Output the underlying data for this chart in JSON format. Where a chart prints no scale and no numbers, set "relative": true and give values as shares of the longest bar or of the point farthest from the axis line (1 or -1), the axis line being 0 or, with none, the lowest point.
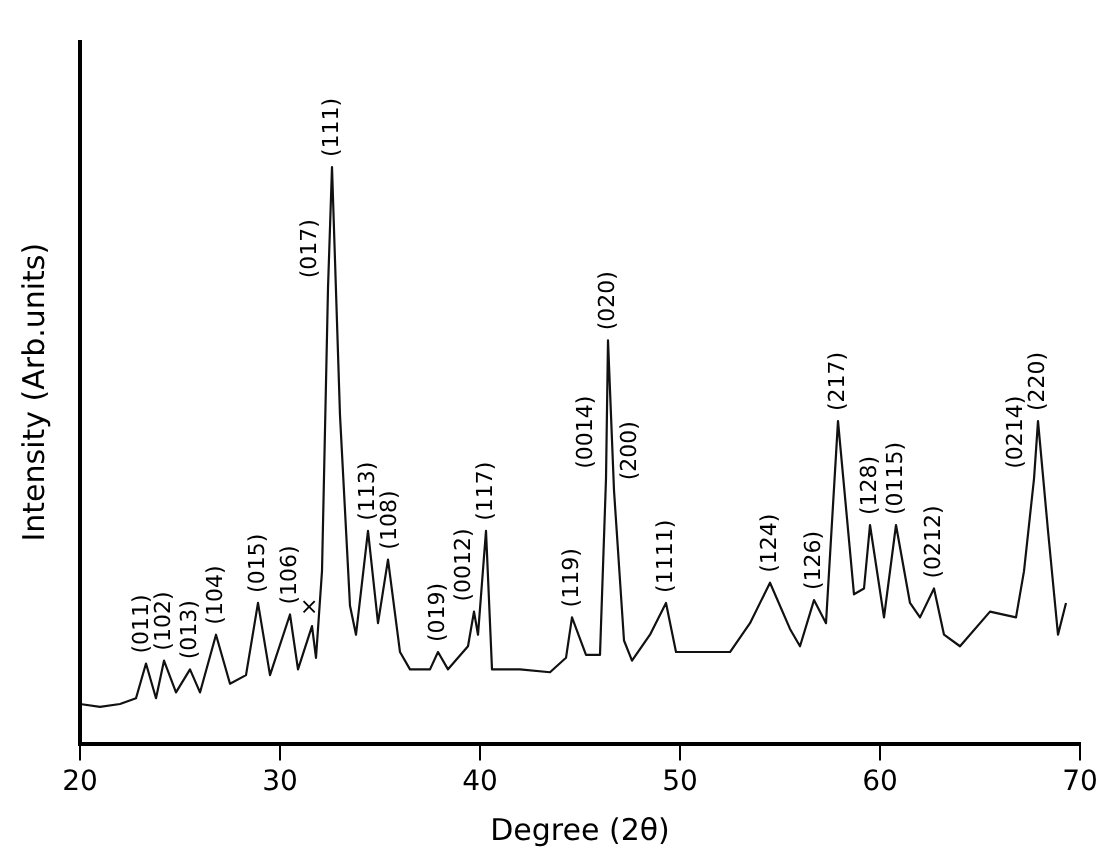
{
  "chart_data": {
    "type": "line",
    "relative": true,
    "xlabel": "Degree (2θ)",
    "ylabel": "Intensity (Arb.units)",
    "xlim": [
      20,
      70
    ],
    "xticks": [
      20,
      30,
      40,
      50,
      60,
      70
    ],
    "grid": false,
    "legend": false,
    "marker": "none",
    "line_style": "solid",
    "x": [
      20,
      21,
      22,
      22.8,
      23.3,
      23.8,
      24.2,
      24.8,
      25.5,
      26.0,
      26.8,
      27.5,
      28.3,
      28.9,
      29.5,
      30.5,
      30.9,
      31.6,
      31.8,
      32.1,
      32.4,
      32.6,
      33.0,
      33.5,
      33.8,
      34.4,
      34.9,
      35.4,
      36.0,
      36.5,
      37.5,
      37.9,
      38.4,
      38.9,
      39.4,
      39.7,
      39.9,
      40.3,
      40.6,
      42,
      43.5,
      44.3,
      44.6,
      45.3,
      46.0,
      46.3,
      46.4,
      46.7,
      47.2,
      47.6,
      48.5,
      49.3,
      49.8,
      51,
      52.5,
      53.5,
      54.5,
      55.5,
      56.0,
      56.7,
      57.3,
      57.9,
      58.7,
      59.2,
      59.5,
      60.2,
      60.8,
      61.5,
      62.0,
      62.7,
      63.2,
      64,
      65.5,
      66.8,
      67.2,
      67.7,
      67.9,
      68.4,
      68.9,
      69.3
    ],
    "series": [
      {
        "color": "#111111",
        "values": [
          0.07,
          0.065,
          0.07,
          0.08,
          0.14,
          0.08,
          0.145,
          0.09,
          0.13,
          0.09,
          0.19,
          0.105,
          0.12,
          0.245,
          0.12,
          0.225,
          0.13,
          0.205,
          0.15,
          0.3,
          0.79,
          1.0,
          0.57,
          0.24,
          0.19,
          0.37,
          0.21,
          0.32,
          0.16,
          0.13,
          0.13,
          0.16,
          0.13,
          0.15,
          0.17,
          0.23,
          0.19,
          0.37,
          0.13,
          0.13,
          0.125,
          0.15,
          0.22,
          0.155,
          0.155,
          0.46,
          0.7,
          0.44,
          0.18,
          0.145,
          0.19,
          0.245,
          0.16,
          0.16,
          0.16,
          0.21,
          0.28,
          0.2,
          0.17,
          0.25,
          0.21,
          0.56,
          0.26,
          0.27,
          0.38,
          0.22,
          0.38,
          0.245,
          0.22,
          0.27,
          0.19,
          0.17,
          0.23,
          0.22,
          0.3,
          0.46,
          0.56,
          0.37,
          0.19,
          0.245
        ]
      }
    ],
    "annotations": [
      {
        "text": "(011)",
        "x": 23.3,
        "y": 0.14
      },
      {
        "text": "(102)",
        "x": 24.2,
        "y": 0.145
      },
      {
        "text": "(013)",
        "x": 25.5,
        "y": 0.13
      },
      {
        "text": "(104)",
        "x": 26.8,
        "y": 0.19
      },
      {
        "text": "(015)",
        "x": 28.9,
        "y": 0.245
      },
      {
        "text": "(106)",
        "x": 30.5,
        "y": 0.225
      },
      {
        "text": "×",
        "x": 31.6,
        "y": 0.205
      },
      {
        "text": "(017)",
        "x": 32.4,
        "y": 0.79
      },
      {
        "text": "(111)",
        "x": 32.6,
        "y": 1.0
      },
      {
        "text": "(113)",
        "x": 34.4,
        "y": 0.37
      },
      {
        "text": "(108)",
        "x": 35.4,
        "y": 0.32
      },
      {
        "text": "(019)",
        "x": 37.9,
        "y": 0.16
      },
      {
        "text": "(0012)",
        "x": 39.7,
        "y": 0.23
      },
      {
        "text": "(117)",
        "x": 40.3,
        "y": 0.37
      },
      {
        "text": "(119)",
        "x": 44.6,
        "y": 0.22
      },
      {
        "text": "(0014)",
        "x": 46.3,
        "y": 0.46
      },
      {
        "text": "(020)",
        "x": 46.4,
        "y": 0.7
      },
      {
        "text": "(200)",
        "x": 46.7,
        "y": 0.44
      },
      {
        "text": "(1111)",
        "x": 49.3,
        "y": 0.245
      },
      {
        "text": "(124)",
        "x": 54.5,
        "y": 0.28
      },
      {
        "text": "(126)",
        "x": 56.7,
        "y": 0.25
      },
      {
        "text": "(217)",
        "x": 57.9,
        "y": 0.56
      },
      {
        "text": "(128)",
        "x": 59.5,
        "y": 0.38
      },
      {
        "text": "(0115)",
        "x": 60.8,
        "y": 0.38
      },
      {
        "text": "(0212)",
        "x": 62.7,
        "y": 0.27
      },
      {
        "text": "(0214)",
        "x": 67.7,
        "y": 0.46
      },
      {
        "text": "(220)",
        "x": 67.9,
        "y": 0.56
      }
    ]
  }
}
